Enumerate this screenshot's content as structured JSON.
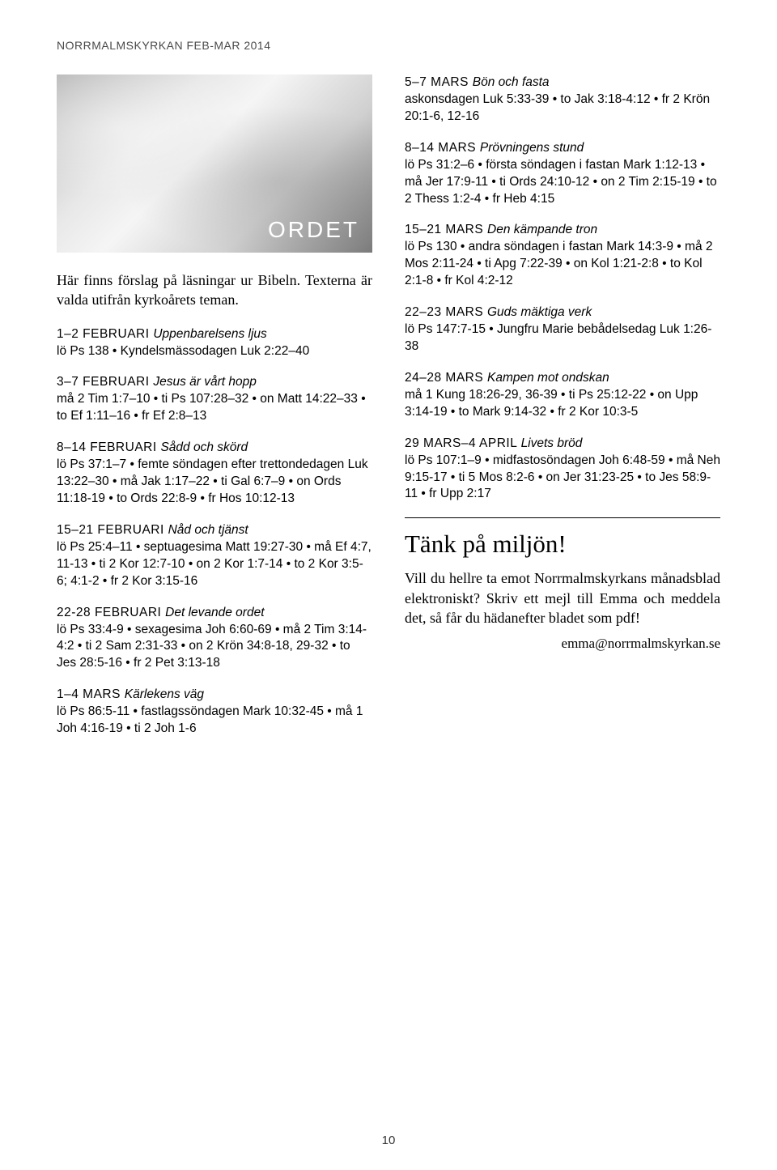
{
  "header": "NORRMALMSKYRKAN FEB-MAR 2014",
  "image_label": "ORDET",
  "intro": "Här finns förslag på läsningar ur Bibeln. Texterna är valda utifrån kyrkoårets teman.",
  "left_sections": [
    {
      "caps": "1–2 FEBRUARI",
      "ital": "Uppenbarelsens ljus",
      "body": "lö Ps 138 • Kyndelsmässodagen Luk 2:22–40"
    },
    {
      "caps": "3–7 FEBRUARI",
      "ital": "Jesus är vårt hopp",
      "body": "må 2 Tim 1:7–10 • ti Ps 107:28–32 • on Matt 14:22–33 • to Ef 1:11–16 • fr Ef 2:8–13"
    },
    {
      "caps": "8–14 FEBRUARI",
      "ital": "Sådd och skörd",
      "body": "lö Ps 37:1–7 • femte söndagen efter trettondedagen Luk 13:22–30 • må Jak 1:17–22 • ti Gal 6:7–9 • on Ords 11:18-19 • to Ords 22:8-9 • fr Hos 10:12-13"
    },
    {
      "caps": "15–21 FEBRUARI",
      "ital": "Nåd och tjänst",
      "body": "lö Ps 25:4–11 • septuagesima Matt 19:27-30 • må Ef 4:7, 11-13 • ti 2 Kor 12:7-10 • on 2 Kor 1:7-14 • to 2 Kor 3:5-6; 4:1-2 • fr 2 Kor 3:15-16"
    },
    {
      "caps": "22-28 FEBRUARI",
      "ital": "Det levande ordet",
      "body": "lö Ps 33:4-9 • sexagesima Joh 6:60-69 • må 2 Tim 3:14-4:2 • ti 2 Sam 2:31-33 • on 2 Krön 34:8-18, 29-32 • to Jes 28:5-16 • fr 2 Pet 3:13-18"
    },
    {
      "caps": "1–4 MARS",
      "ital": "Kärlekens väg",
      "body": "lö Ps 86:5-11 • fastlagssöndagen Mark 10:32-45 • må 1 Joh 4:16-19 • ti 2 Joh 1-6"
    }
  ],
  "right_sections": [
    {
      "caps": "5–7 MARS",
      "ital": "Bön och fasta",
      "body": "askonsdagen Luk 5:33-39 • to Jak 3:18-4:12 • fr 2 Krön 20:1-6, 12-16"
    },
    {
      "caps": "8–14 MARS",
      "ital": "Prövningens stund",
      "body": "lö Ps 31:2–6 • första söndagen i fastan Mark 1:12-13 • må Jer 17:9-11 • ti Ords 24:10-12 • on 2 Tim 2:15-19 • to 2 Thess 1:2-4 • fr Heb 4:15"
    },
    {
      "caps": "15–21 MARS",
      "ital": "Den kämpande tron",
      "body": "lö Ps 130 • andra söndagen i fastan Mark 14:3-9 • må 2 Mos 2:11-24 • ti Apg 7:22-39 • on Kol 1:21-2:8 • to Kol 2:1-8 • fr Kol 4:2-12"
    },
    {
      "caps": "22–23 MARS",
      "ital": "Guds mäktiga verk",
      "body": "lö Ps 147:7-15 • Jungfru Marie bebådelsedag Luk 1:26-38"
    },
    {
      "caps": "24–28 MARS",
      "ital": "Kampen mot ondskan",
      "body": "må 1 Kung 18:26-29, 36-39 • ti Ps 25:12-22 • on Upp 3:14-19 • to Mark 9:14-32 • fr 2 Kor 10:3-5"
    },
    {
      "caps": "29 MARS–4 APRIL",
      "ital": "Livets bröd",
      "body": "lö Ps 107:1–9 • midfastosöndagen Joh 6:48-59 • må Neh 9:15-17 • ti 5 Mos 8:2-6 • on Jer 31:23-25 • to Jes 58:9-11 • fr Upp 2:17"
    }
  ],
  "miljo": {
    "heading": "Tänk på miljön!",
    "body": "Vill du hellre ta emot Norrmalms­kyrkans månadsblad elektroniskt? Skriv ett mejl till Emma och meddela det, så får du hädanefter bladet som pdf!",
    "email": "emma@norrmalmskyrkan.se"
  },
  "page_number": "10"
}
